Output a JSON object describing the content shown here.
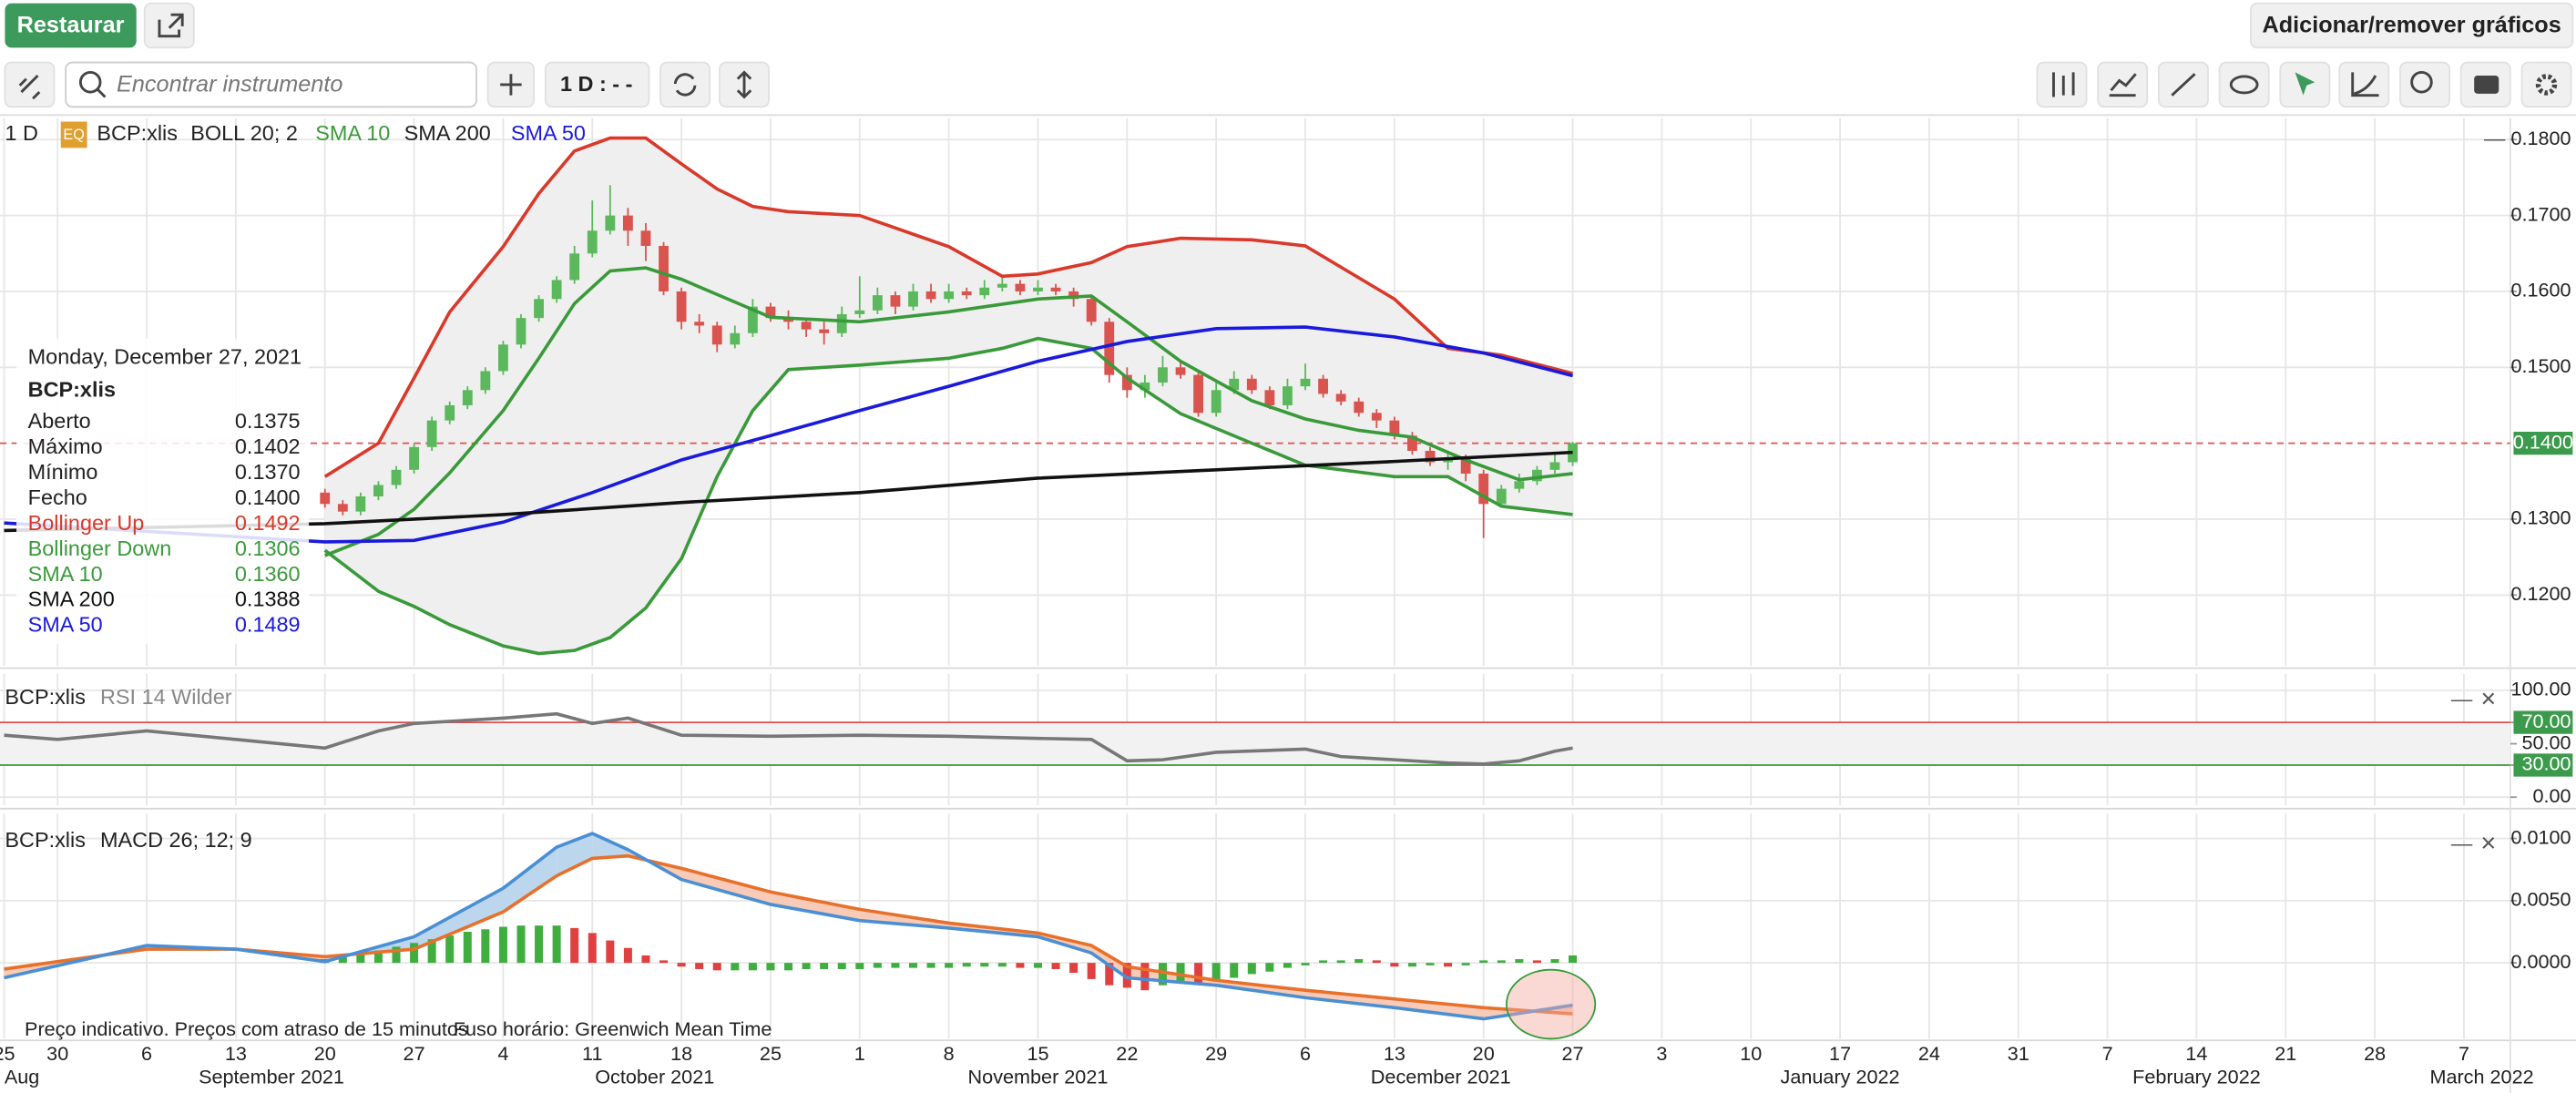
{
  "toolbar": {
    "restore": "Restaurar",
    "search_placeholder": "Encontrar instrumento",
    "interval": "1 D : - -",
    "add_remove": "Adicionar/remover gráficos"
  },
  "legend": {
    "interval": "1 D",
    "badge": "EQ",
    "symbol": "BCP:xlis",
    "boll": "BOLL 20; 2",
    "sma10": "SMA 10",
    "sma200": "SMA 200",
    "sma50": "SMA 50"
  },
  "tooltip": {
    "date": "Monday, December 27, 2021",
    "symbol": "BCP:xlis",
    "rows": [
      {
        "label": "Aberto",
        "value": "0.1375",
        "color": "#222222"
      },
      {
        "label": "Máximo",
        "value": "0.1402",
        "color": "#222222"
      },
      {
        "label": "Mínimo",
        "value": "0.1370",
        "color": "#222222"
      },
      {
        "label": "Fecho",
        "value": "0.1400",
        "color": "#222222"
      },
      {
        "label": "Bollinger Up",
        "value": "0.1492",
        "color": "#d8392b"
      },
      {
        "label": "Bollinger Down",
        "value": "0.1306",
        "color": "#3a9a3a"
      },
      {
        "label": "SMA 10",
        "value": "0.1360",
        "color": "#3a9a3a"
      },
      {
        "label": "SMA 200",
        "value": "0.1388",
        "color": "#111111"
      },
      {
        "label": "SMA 50",
        "value": "0.1489",
        "color": "#1a1adc"
      }
    ]
  },
  "footer": {
    "notice": "Preço indicativo. Preços com atraso de 15 minutos",
    "timezone": "Fuso horário: Greenwich Mean Time"
  },
  "x_axis": {
    "xlim": [
      -3.23,
      137.6
    ],
    "xticks": [
      {
        "value": -3,
        "label": "25"
      },
      {
        "value": 0,
        "label": "30"
      },
      {
        "value": 5,
        "label": "6"
      },
      {
        "value": 10,
        "label": "13"
      },
      {
        "value": 15,
        "label": "20"
      },
      {
        "value": 20,
        "label": "27"
      },
      {
        "value": 25,
        "label": "4"
      },
      {
        "value": 30,
        "label": "11"
      },
      {
        "value": 35,
        "label": "18"
      },
      {
        "value": 40,
        "label": "25"
      },
      {
        "value": 45,
        "label": "1"
      },
      {
        "value": 50,
        "label": "8"
      },
      {
        "value": 55,
        "label": "15"
      },
      {
        "value": 60,
        "label": "22"
      },
      {
        "value": 65,
        "label": "29"
      },
      {
        "value": 70,
        "label": "6"
      },
      {
        "value": 75,
        "label": "13"
      },
      {
        "value": 80,
        "label": "20"
      },
      {
        "value": 85,
        "label": "27"
      },
      {
        "value": 90,
        "label": "3"
      },
      {
        "value": 95,
        "label": "10"
      },
      {
        "value": 100,
        "label": "17"
      },
      {
        "value": 105,
        "label": "24"
      },
      {
        "value": 110,
        "label": "31"
      },
      {
        "value": 115,
        "label": "7"
      },
      {
        "value": 120,
        "label": "14"
      },
      {
        "value": 125,
        "label": "21"
      },
      {
        "value": 130,
        "label": "28"
      },
      {
        "value": 135,
        "label": "7"
      }
    ],
    "months": [
      {
        "value": -2,
        "label": "Aug"
      },
      {
        "value": 12,
        "label": "September 2021"
      },
      {
        "value": 33.5,
        "label": "October 2021"
      },
      {
        "value": 55,
        "label": "November 2021"
      },
      {
        "value": 77.6,
        "label": "December 2021"
      },
      {
        "value": 100,
        "label": "January 2022"
      },
      {
        "value": 120,
        "label": "February 2022"
      },
      {
        "value": 136,
        "label": "March 2022"
      }
    ]
  },
  "price": {
    "type": "candlestick",
    "ylim": [
      0.1107,
      0.1828
    ],
    "yticks": [
      {
        "value": 0.18,
        "label": "0.1800"
      },
      {
        "value": 0.17,
        "label": "0.1700"
      },
      {
        "value": 0.16,
        "label": "0.1600"
      },
      {
        "value": 0.15,
        "label": "0.1500"
      },
      {
        "value": 0.13,
        "label": "0.1300"
      },
      {
        "value": 0.12,
        "label": "0.1200"
      }
    ],
    "last_price": {
      "value": 0.14,
      "label": "0.1400"
    },
    "last_color": "#3c9a4c",
    "last_line_color": "#e05050",
    "up_color": "#5cb85c",
    "down_color": "#d9534f",
    "x": [
      15,
      16,
      17,
      18,
      19,
      20,
      21,
      22,
      23,
      24,
      25,
      26,
      27,
      28,
      29,
      30,
      31,
      32,
      33,
      34,
      35,
      36,
      37,
      38,
      39,
      40,
      41,
      42,
      43,
      44,
      45,
      46,
      47,
      48,
      49,
      50,
      51,
      52,
      53,
      54,
      55,
      56,
      57,
      58,
      59,
      60,
      61,
      62,
      63,
      64,
      65,
      66,
      67,
      68,
      69,
      70,
      71,
      72,
      73,
      74,
      75,
      76,
      77,
      78,
      79,
      80,
      81,
      82,
      83,
      84,
      85
    ],
    "open": [
      0.1335,
      0.132,
      0.131,
      0.133,
      0.1345,
      0.1365,
      0.1395,
      0.143,
      0.145,
      0.147,
      0.1495,
      0.153,
      0.1565,
      0.159,
      0.1615,
      0.165,
      0.168,
      0.17,
      0.168,
      0.166,
      0.16,
      0.156,
      0.1555,
      0.153,
      0.1545,
      0.158,
      0.1565,
      0.156,
      0.155,
      0.1545,
      0.157,
      0.1575,
      0.1595,
      0.158,
      0.16,
      0.159,
      0.16,
      0.1595,
      0.1605,
      0.161,
      0.16,
      0.1605,
      0.16,
      0.159,
      0.156,
      0.149,
      0.147,
      0.148,
      0.15,
      0.149,
      0.144,
      0.147,
      0.1485,
      0.147,
      0.145,
      0.1475,
      0.1485,
      0.1465,
      0.1455,
      0.144,
      0.143,
      0.141,
      0.139,
      0.1375,
      0.138,
      0.136,
      0.132,
      0.134,
      0.135,
      0.1365,
      0.1375
    ],
    "high": [
      0.134,
      0.1325,
      0.1335,
      0.135,
      0.137,
      0.14,
      0.1435,
      0.1455,
      0.1475,
      0.15,
      0.1535,
      0.157,
      0.1595,
      0.162,
      0.166,
      0.172,
      0.174,
      0.171,
      0.169,
      0.1665,
      0.1605,
      0.157,
      0.156,
      0.1555,
      0.159,
      0.1585,
      0.1575,
      0.1565,
      0.156,
      0.158,
      0.162,
      0.1605,
      0.16,
      0.161,
      0.161,
      0.161,
      0.1605,
      0.1615,
      0.162,
      0.1615,
      0.1615,
      0.161,
      0.1605,
      0.1595,
      0.1565,
      0.15,
      0.149,
      0.1515,
      0.151,
      0.1495,
      0.148,
      0.1495,
      0.149,
      0.1475,
      0.1485,
      0.1505,
      0.149,
      0.147,
      0.146,
      0.1445,
      0.1435,
      0.1415,
      0.1395,
      0.139,
      0.1385,
      0.1365,
      0.1345,
      0.136,
      0.137,
      0.1385,
      0.1402
    ],
    "low": [
      0.1315,
      0.1305,
      0.1305,
      0.1325,
      0.134,
      0.136,
      0.139,
      0.1425,
      0.1445,
      0.1465,
      0.149,
      0.1525,
      0.156,
      0.1585,
      0.161,
      0.1645,
      0.1675,
      0.166,
      0.164,
      0.1595,
      0.155,
      0.1545,
      0.152,
      0.1525,
      0.154,
      0.156,
      0.155,
      0.154,
      0.153,
      0.154,
      0.1565,
      0.157,
      0.157,
      0.1575,
      0.1585,
      0.1585,
      0.159,
      0.159,
      0.16,
      0.1595,
      0.1595,
      0.1595,
      0.158,
      0.1555,
      0.148,
      0.146,
      0.146,
      0.1475,
      0.1485,
      0.1435,
      0.1435,
      0.1465,
      0.1465,
      0.1445,
      0.1445,
      0.147,
      0.146,
      0.145,
      0.1435,
      0.142,
      0.1405,
      0.1385,
      0.137,
      0.1365,
      0.135,
      0.1275,
      0.1315,
      0.1335,
      0.1345,
      0.136,
      0.137
    ],
    "close": [
      0.132,
      0.131,
      0.133,
      0.1345,
      0.1365,
      0.1395,
      0.143,
      0.145,
      0.147,
      0.1495,
      0.153,
      0.1565,
      0.159,
      0.1615,
      0.165,
      0.168,
      0.17,
      0.168,
      0.166,
      0.16,
      0.156,
      0.1555,
      0.153,
      0.1545,
      0.158,
      0.1565,
      0.156,
      0.155,
      0.1545,
      0.157,
      0.1575,
      0.1595,
      0.158,
      0.16,
      0.159,
      0.16,
      0.1595,
      0.1605,
      0.161,
      0.16,
      0.1605,
      0.16,
      0.159,
      0.156,
      0.149,
      0.147,
      0.148,
      0.15,
      0.149,
      0.144,
      0.147,
      0.1485,
      0.147,
      0.145,
      0.1475,
      0.1485,
      0.1465,
      0.1455,
      0.144,
      0.143,
      0.141,
      0.139,
      0.1375,
      0.138,
      0.136,
      0.132,
      0.134,
      0.135,
      0.1365,
      0.1375,
      0.14
    ],
    "bands": {
      "x": [
        15,
        18,
        20,
        22,
        25,
        27,
        29,
        31,
        33,
        35,
        37,
        39,
        41,
        45,
        50,
        53,
        55,
        58,
        60,
        63,
        67,
        70,
        75,
        78,
        81,
        85
      ],
      "upper": [
        0.1356,
        0.14,
        0.1486,
        0.1573,
        0.1659,
        0.1729,
        0.1785,
        0.1802,
        0.1802,
        0.1768,
        0.1735,
        0.1712,
        0.1705,
        0.17,
        0.1659,
        0.162,
        0.1623,
        0.1638,
        0.1659,
        0.167,
        0.1668,
        0.166,
        0.159,
        0.1525,
        0.1516,
        0.1492
      ],
      "lower": [
        0.1259,
        0.1205,
        0.1185,
        0.1161,
        0.1133,
        0.1123,
        0.1127,
        0.1144,
        0.1183,
        0.1248,
        0.1356,
        0.1443,
        0.1497,
        0.1503,
        0.1512,
        0.1525,
        0.1538,
        0.1525,
        0.1486,
        0.1439,
        0.14,
        0.1371,
        0.1356,
        0.1356,
        0.1317,
        0.1306
      ],
      "upper_color": "#d8392b",
      "lower_color": "#3a9a3a",
      "fill": "#efefef"
    },
    "lines": [
      {
        "color": "#3a9a3a",
        "x": [
          15,
          18,
          20,
          22,
          25,
          27,
          29,
          31,
          33,
          35,
          38,
          40,
          45,
          50,
          55,
          58,
          60,
          63,
          67,
          70,
          73,
          76,
          79,
          82,
          85
        ],
        "values": [
          0.1252,
          0.128,
          0.1313,
          0.1361,
          0.1443,
          0.1512,
          0.1584,
          0.1627,
          0.1631,
          0.1616,
          0.1586,
          0.1566,
          0.156,
          0.1573,
          0.159,
          0.1594,
          0.156,
          0.1508,
          0.1456,
          0.1432,
          0.1417,
          0.1408,
          0.1378,
          0.1352,
          0.136
        ]
      },
      {
        "color": "#1a1adc",
        "x": [
          -3,
          15,
          20,
          25,
          30,
          35,
          40,
          45,
          50,
          55,
          60,
          65,
          70,
          75,
          80,
          85
        ],
        "values": [
          0.1295,
          0.127,
          0.1272,
          0.1296,
          0.1335,
          0.1378,
          0.141,
          0.1443,
          0.1475,
          0.1508,
          0.1534,
          0.1551,
          0.1553,
          0.154,
          0.1519,
          0.1489
        ]
      },
      {
        "color": "#111111",
        "x": [
          -3,
          15,
          25,
          35,
          45,
          55,
          65,
          75,
          85
        ],
        "values": [
          0.1285,
          0.1294,
          0.1306,
          0.1322,
          0.1335,
          0.1354,
          0.1365,
          0.1376,
          0.1388
        ]
      }
    ]
  },
  "rsi": {
    "type": "line",
    "symbol": "BCP:xlis",
    "title": "RSI 14 Wilder",
    "ylim": [
      -7.7,
      115.4
    ],
    "yticks": [
      {
        "value": 100,
        "label": "100.00"
      },
      {
        "value": 70,
        "label": "70.00"
      },
      {
        "value": 50,
        "label": "50.00"
      },
      {
        "value": 30,
        "label": "30.00"
      },
      {
        "value": 0,
        "label": "0.00"
      }
    ],
    "overbought": 70,
    "oversold": 30,
    "overbought_color": "#e05050",
    "oversold_color": "#3a9a3a",
    "band_fill": "#f2f2f2",
    "box_color": "#3c9a4c",
    "color": "#777777",
    "x": [
      -3,
      0,
      5,
      10,
      15,
      18,
      20,
      25,
      28,
      30,
      32,
      35,
      40,
      45,
      50,
      55,
      58,
      60,
      62,
      65,
      70,
      72,
      75,
      78,
      80,
      82,
      84,
      85
    ],
    "values": [
      58,
      54,
      62,
      54,
      46,
      62,
      69,
      74,
      78,
      69,
      74,
      58,
      57,
      58,
      57,
      55,
      54,
      34,
      35,
      42,
      45,
      38,
      35,
      32,
      31,
      34,
      43,
      46
    ]
  },
  "macd": {
    "type": "macd",
    "symbol": "BCP:xlis",
    "title": "MACD 26; 12; 9",
    "ylim": [
      -0.0061,
      0.012
    ],
    "yticks": [
      {
        "value": 0.01,
        "label": "0.0100"
      },
      {
        "value": 0.005,
        "label": "0.0050"
      },
      {
        "value": 0,
        "label": "0.0000"
      }
    ],
    "x": [
      -3,
      5,
      10,
      15,
      20,
      25,
      28,
      30,
      32,
      35,
      40,
      45,
      50,
      55,
      58,
      60,
      65,
      70,
      75,
      80,
      85
    ],
    "macd": [
      -0.0012,
      0.0014,
      0.0011,
      0.0001,
      0.0021,
      0.006,
      0.0093,
      0.0104,
      0.0091,
      0.0067,
      0.0047,
      0.0034,
      0.0028,
      0.0021,
      0.0008,
      -0.0012,
      -0.0018,
      -0.0028,
      -0.0036,
      -0.0045,
      -0.0034
    ],
    "signal": [
      -0.0005,
      0.0011,
      0.0011,
      0.0005,
      0.0011,
      0.0041,
      0.007,
      0.0084,
      0.0086,
      0.0076,
      0.0057,
      0.0043,
      0.0032,
      0.0024,
      0.0014,
      -0.0003,
      -0.0014,
      -0.0022,
      -0.0029,
      -0.0036,
      -0.0041
    ],
    "macd_color": "#4a8fd4",
    "signal_color": "#e8702a",
    "fill_above": "#bcd6ee",
    "fill_below": "#f7cbb8",
    "histogram": {
      "x": [
        15,
        16,
        17,
        18,
        19,
        20,
        21,
        22,
        23,
        24,
        25,
        26,
        27,
        28,
        29,
        30,
        31,
        32,
        33,
        34,
        35,
        36,
        37,
        38,
        39,
        40,
        41,
        42,
        43,
        44,
        45,
        46,
        47,
        48,
        49,
        50,
        51,
        52,
        53,
        54,
        55,
        56,
        57,
        58,
        59,
        60,
        61,
        62,
        63,
        64,
        65,
        66,
        67,
        68,
        69,
        70,
        71,
        72,
        73,
        74,
        75,
        76,
        77,
        78,
        79,
        80,
        81,
        82,
        83,
        84,
        85
      ],
      "values": [
        0.0003,
        0.0005,
        0.0008,
        0.001,
        0.0013,
        0.0016,
        0.0019,
        0.0022,
        0.0025,
        0.0027,
        0.0029,
        0.003,
        0.003,
        0.003,
        0.0028,
        0.0024,
        0.0018,
        0.0012,
        0.0006,
        0.0002,
        -0.0003,
        -0.0005,
        -0.0006,
        -0.0006,
        -0.0006,
        -0.0006,
        -0.0006,
        -0.0005,
        -0.0005,
        -0.0005,
        -0.0005,
        -0.0004,
        -0.0004,
        -0.0004,
        -0.0004,
        -0.0004,
        -0.0003,
        -0.0003,
        -0.0003,
        -0.0004,
        -0.0004,
        -0.0005,
        -0.0008,
        -0.0013,
        -0.0018,
        -0.002,
        -0.0022,
        -0.0018,
        -0.0016,
        -0.0017,
        -0.0015,
        -0.0012,
        -0.0009,
        -0.0007,
        -0.0004,
        -0.0002,
        0.0002,
        0.0002,
        0.0003,
        0.0002,
        -0.0003,
        -0.0003,
        -0.0002,
        -0.0003,
        -0.0002,
        0.0002,
        0.0002,
        0.0003,
        0.0002,
        0.0003,
        0.0006
      ],
      "up_color": "#3fae3f",
      "down_color": "#e04040"
    }
  }
}
